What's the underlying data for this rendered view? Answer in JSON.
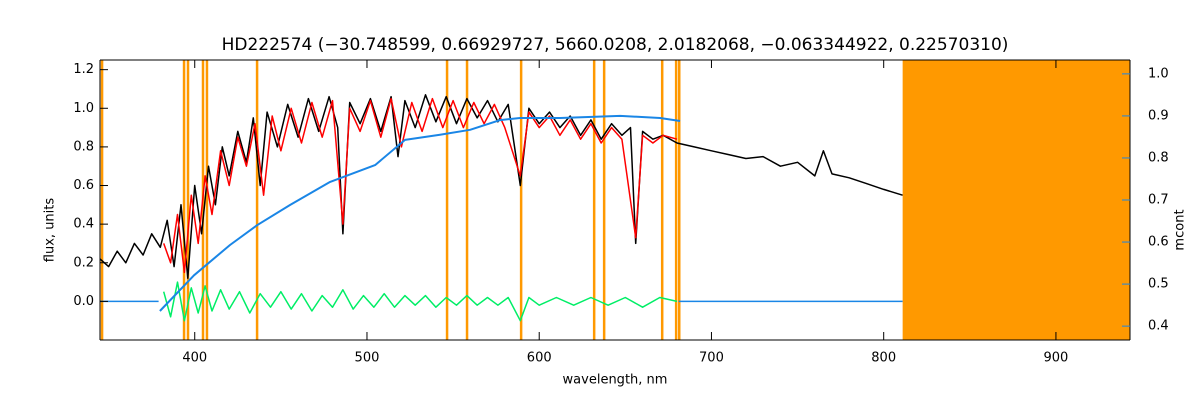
{
  "chart_data": {
    "type": "line",
    "title": "HD222574   (−30.748599, 0.66929727, 5660.0208, 2.0182068, −0.063344922, 0.22570310)",
    "x_label": "wavelength, nm",
    "y_label": "flux, units",
    "y2_label": "mcont",
    "xlim": [
      345,
      943
    ],
    "ylim": [
      -0.2,
      1.25
    ],
    "y2lim": [
      0.367,
      1.033
    ],
    "xticks": [
      400,
      500,
      600,
      700,
      800,
      900
    ],
    "yticks": [
      {
        "value": 0,
        "label": "0.0"
      },
      {
        "value": 0.2,
        "label": "0.2"
      },
      {
        "value": 0.4,
        "label": "0.4"
      },
      {
        "value": 0.6,
        "label": "0.6"
      },
      {
        "value": 0.8,
        "label": "0.8"
      },
      {
        "value": 1,
        "label": "1.0"
      },
      {
        "value": 1.2,
        "label": "1.2"
      }
    ],
    "y2ticks": [
      {
        "value": 0.4,
        "label": "0.4"
      },
      {
        "value": 0.5,
        "label": "0.5"
      },
      {
        "value": 0.6,
        "label": "0.6"
      },
      {
        "value": 0.7,
        "label": "0.7"
      },
      {
        "value": 0.8,
        "label": "0.8"
      },
      {
        "value": 0.9,
        "label": "0.9"
      },
      {
        "value": 1,
        "label": "1.0"
      }
    ],
    "y2_color": "#1a86e6",
    "marker_color": "#ff9900",
    "marker_lines": [
      346.2,
      393.8,
      396.1,
      404.8,
      407.1,
      436.2,
      546.5,
      558.1,
      589.5,
      631.9,
      637.7,
      671.4,
      679.5,
      681.3
    ],
    "shaded_from": 811,
    "series": [
      {
        "color": "#000000",
        "x": [
          345,
          350,
          355,
          360,
          365,
          370,
          375,
          380,
          384,
          388,
          392,
          396,
          400,
          404,
          408,
          412,
          416,
          420,
          425,
          430,
          434,
          438,
          442,
          448,
          454,
          460,
          466,
          472,
          478,
          483,
          486,
          490,
          496,
          502,
          508,
          514,
          518,
          522,
          528,
          534,
          540,
          546,
          552,
          558,
          564,
          570,
          576,
          582,
          589,
          594,
          600,
          606,
          612,
          618,
          624,
          630,
          636,
          642,
          648,
          653,
          656,
          660,
          666,
          672,
          680,
          690,
          700,
          710,
          720,
          730,
          740,
          750,
          760,
          765,
          770,
          780,
          790,
          800,
          811
        ],
        "values": [
          0.22,
          0.18,
          0.26,
          0.2,
          0.3,
          0.24,
          0.35,
          0.28,
          0.42,
          0.18,
          0.5,
          0.12,
          0.6,
          0.35,
          0.7,
          0.5,
          0.8,
          0.65,
          0.88,
          0.72,
          0.95,
          0.6,
          0.98,
          0.8,
          1.02,
          0.85,
          1.05,
          0.88,
          1.06,
          0.9,
          0.35,
          1.03,
          0.92,
          1.05,
          0.88,
          1.06,
          0.75,
          1.04,
          0.9,
          1.07,
          0.93,
          1.06,
          0.92,
          1.05,
          0.95,
          1.04,
          0.93,
          1.02,
          0.6,
          1.0,
          0.92,
          0.98,
          0.9,
          0.96,
          0.86,
          0.94,
          0.84,
          0.92,
          0.86,
          0.9,
          0.3,
          0.88,
          0.84,
          0.86,
          0.82,
          0.8,
          0.78,
          0.76,
          0.74,
          0.75,
          0.7,
          0.72,
          0.65,
          0.78,
          0.66,
          0.64,
          0.61,
          0.58,
          0.55
        ]
      },
      {
        "color": "#ff0000",
        "x": [
          382,
          386,
          390,
          394,
          398,
          402,
          406,
          410,
          415,
          420,
          425,
          430,
          435,
          440,
          445,
          450,
          456,
          462,
          468,
          474,
          480,
          486,
          490,
          496,
          502,
          508,
          514,
          520,
          526,
          532,
          538,
          544,
          550,
          556,
          562,
          568,
          574,
          580,
          589,
          594,
          600,
          606,
          612,
          618,
          624,
          630,
          636,
          642,
          648,
          656,
          660,
          666,
          672,
          680
        ],
        "values": [
          0.3,
          0.2,
          0.45,
          0.15,
          0.55,
          0.3,
          0.65,
          0.45,
          0.78,
          0.6,
          0.85,
          0.7,
          0.92,
          0.55,
          0.96,
          0.78,
          1.0,
          0.82,
          1.03,
          0.85,
          1.04,
          0.4,
          1.0,
          0.88,
          1.04,
          0.85,
          1.05,
          0.8,
          1.03,
          0.88,
          1.05,
          0.9,
          1.04,
          0.9,
          1.03,
          0.92,
          1.02,
          0.9,
          0.65,
          0.98,
          0.9,
          0.96,
          0.86,
          0.94,
          0.84,
          0.92,
          0.82,
          0.9,
          0.84,
          0.33,
          0.86,
          0.82,
          0.86,
          0.84
        ]
      },
      {
        "color": "#00ee66",
        "x": [
          382,
          386,
          390,
          394,
          398,
          402,
          406,
          410,
          415,
          420,
          426,
          432,
          438,
          444,
          450,
          456,
          462,
          468,
          474,
          480,
          486,
          492,
          498,
          504,
          510,
          516,
          522,
          528,
          534,
          540,
          546,
          552,
          558,
          564,
          570,
          576,
          582,
          589,
          594,
          600,
          610,
          620,
          630,
          640,
          650,
          660,
          670,
          680
        ],
        "values": [
          0.05,
          -0.08,
          0.1,
          -0.1,
          0.07,
          -0.06,
          0.08,
          -0.05,
          0.06,
          -0.04,
          0.05,
          -0.06,
          0.04,
          -0.03,
          0.05,
          -0.04,
          0.04,
          -0.05,
          0.03,
          -0.03,
          0.06,
          -0.04,
          0.03,
          -0.03,
          0.04,
          -0.03,
          0.03,
          -0.02,
          0.03,
          -0.03,
          0.02,
          -0.02,
          0.03,
          -0.02,
          0.02,
          -0.02,
          0.02,
          -0.1,
          0.02,
          -0.02,
          0.02,
          -0.02,
          0.02,
          -0.02,
          0.02,
          -0.03,
          0.02,
          0
        ]
      },
      {
        "color": "#1a86e6",
        "x": [
          345,
          379,
          380,
          681,
          811
        ],
        "values": [
          0,
          0,
          null,
          0,
          0
        ]
      },
      {
        "color": "#1a86e6",
        "axis": "y2",
        "x": [
          379.8,
          399.6,
          420.5,
          436.2,
          455.3,
          478.6,
          504.7,
          522.1,
          542.4,
          559.9,
          577.3,
          588.9,
          612.1,
          647.0,
          670.2,
          681.8
        ],
        "values": [
          0.436,
          0.521,
          0.593,
          0.64,
          0.688,
          0.743,
          0.783,
          0.843,
          0.855,
          0.867,
          0.89,
          0.895,
          0.895,
          0.9,
          0.895,
          0.888
        ]
      }
    ]
  }
}
